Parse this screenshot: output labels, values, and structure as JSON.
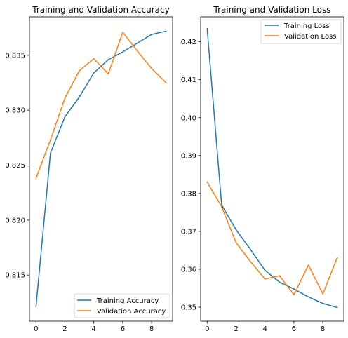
{
  "chart_data": [
    {
      "type": "line",
      "title": "Training and Validation Accuracy",
      "xlabel": "",
      "ylabel": "",
      "xlim": [
        -0.45,
        9.45
      ],
      "ylim": [
        0.8108,
        0.8385
      ],
      "xticks": [
        0,
        2,
        4,
        6,
        8
      ],
      "yticks": [
        0.815,
        0.82,
        0.825,
        0.83,
        0.835
      ],
      "ytick_labels": [
        "0.815",
        "0.820",
        "0.825",
        "0.830",
        "0.835"
      ],
      "xtick_labels": [
        "0",
        "2",
        "4",
        "6",
        "8"
      ],
      "grid": false,
      "legend": "lower-right",
      "x": [
        0,
        1,
        2,
        3,
        4,
        5,
        6,
        7,
        8,
        9
      ],
      "series": [
        {
          "name": "Training Accuracy",
          "color": "#1f77b4",
          "values": [
            0.8121,
            0.8261,
            0.8294,
            0.8312,
            0.8334,
            0.8346,
            0.8353,
            0.8361,
            0.8369,
            0.8372
          ]
        },
        {
          "name": "Validation Accuracy",
          "color": "#ff7f0e",
          "values": [
            0.8238,
            0.8273,
            0.8311,
            0.8336,
            0.8347,
            0.8333,
            0.8371,
            0.8354,
            0.8338,
            0.8325
          ]
        }
      ]
    },
    {
      "type": "line",
      "title": "Training and Validation Loss",
      "xlabel": "",
      "ylabel": "",
      "xlim": [
        -0.45,
        9.45
      ],
      "ylim": [
        0.3463,
        0.4266
      ],
      "xticks": [
        0,
        2,
        4,
        6,
        8
      ],
      "yticks": [
        0.35,
        0.36,
        0.37,
        0.38,
        0.39,
        0.4,
        0.41,
        0.42
      ],
      "ytick_labels": [
        "0.35",
        "0.36",
        "0.37",
        "0.38",
        "0.39",
        "0.40",
        "0.41",
        "0.42"
      ],
      "xtick_labels": [
        "0",
        "2",
        "4",
        "6",
        "8"
      ],
      "grid": false,
      "legend": "upper-right",
      "x": [
        0,
        1,
        2,
        3,
        4,
        5,
        6,
        7,
        8,
        9
      ],
      "series": [
        {
          "name": "Training Loss",
          "color": "#1f77b4",
          "values": [
            0.4235,
            0.377,
            0.3704,
            0.3652,
            0.3597,
            0.3566,
            0.3548,
            0.3527,
            0.351,
            0.3499
          ]
        },
        {
          "name": "Validation Loss",
          "color": "#ff7f0e",
          "values": [
            0.383,
            0.3765,
            0.367,
            0.362,
            0.3574,
            0.3583,
            0.3533,
            0.3611,
            0.3535,
            0.3631
          ]
        }
      ]
    }
  ]
}
